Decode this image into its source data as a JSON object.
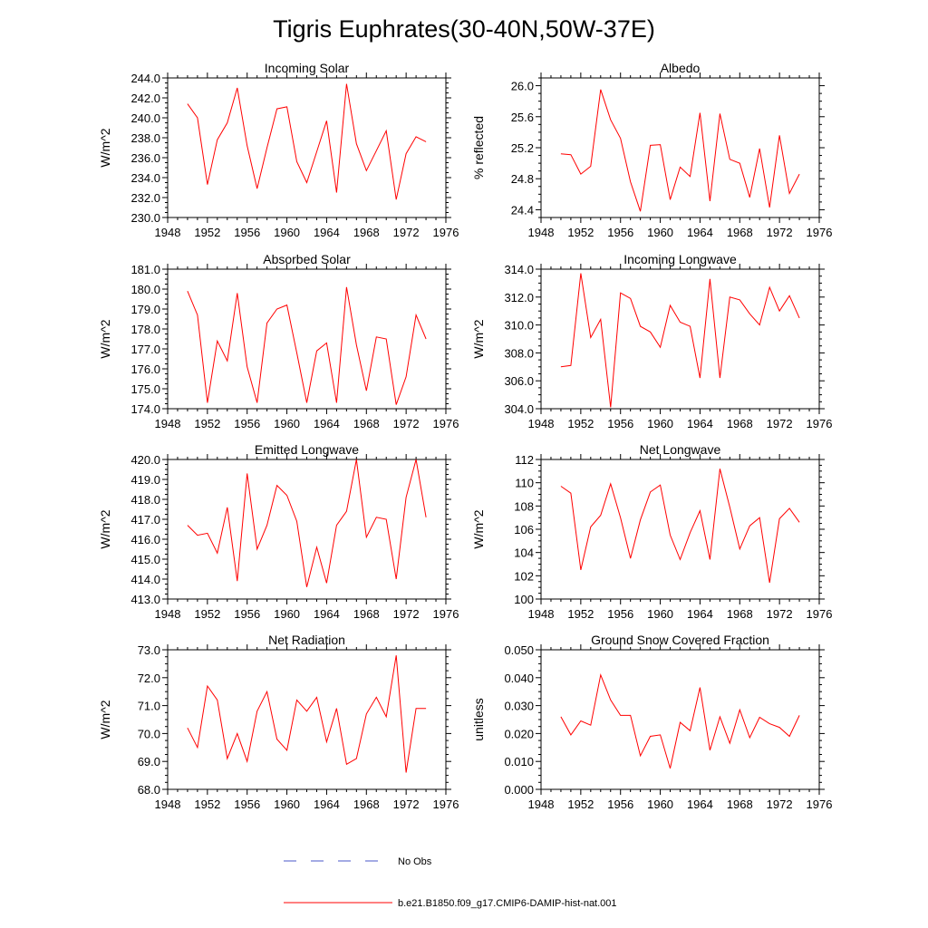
{
  "figure": {
    "title": "Tigris Euphrates(30-40N,50W-37E)",
    "colors": {
      "model": "#ff0000",
      "obs": "#4a57c8",
      "axis": "#000000"
    }
  },
  "legend": {
    "obs_label": "No Obs",
    "model_label": "b.e21.B1850.f09_g17.CMIP6-DAMIP-hist-nat.001"
  },
  "chart_data": [
    {
      "type": "line",
      "title": "Incoming Solar",
      "xlabel": "",
      "ylabel": "W/m^2",
      "xlim": [
        1948,
        1976
      ],
      "ylim": [
        230,
        244
      ],
      "y_decimals": 1,
      "xticks": [
        1948,
        1952,
        1956,
        1960,
        1964,
        1968,
        1972,
        1976
      ],
      "yticks": [
        230,
        232,
        234,
        236,
        238,
        240,
        242,
        244
      ],
      "x": [
        1950,
        1951,
        1952,
        1953,
        1954,
        1955,
        1956,
        1957,
        1958,
        1959,
        1960,
        1961,
        1962,
        1963,
        1964,
        1965,
        1966,
        1967,
        1968,
        1969,
        1970,
        1971,
        1972,
        1973,
        1974
      ],
      "series": [
        {
          "name": "b.e21.B1850.f09_g17.CMIP6-DAMIP-hist-nat.001",
          "values": [
            241.4,
            240.0,
            233.3,
            237.8,
            239.5,
            243.0,
            237.2,
            232.9,
            237.0,
            240.9,
            241.1,
            235.6,
            233.5,
            236.6,
            239.7,
            232.5,
            243.4,
            237.4,
            234.7,
            236.7,
            238.7,
            231.8,
            236.4,
            238.1,
            237.6
          ]
        }
      ]
    },
    {
      "type": "line",
      "title": "Albedo",
      "xlabel": "",
      "ylabel": "% reflected",
      "xlim": [
        1948,
        1976
      ],
      "ylim": [
        24.3,
        26.1
      ],
      "y_decimals": 1,
      "xticks": [
        1948,
        1952,
        1956,
        1960,
        1964,
        1968,
        1972,
        1976
      ],
      "yticks": [
        24.4,
        24.8,
        25.2,
        25.6,
        26.0
      ],
      "x": [
        1950,
        1951,
        1952,
        1953,
        1954,
        1955,
        1956,
        1957,
        1958,
        1959,
        1960,
        1961,
        1962,
        1963,
        1964,
        1965,
        1966,
        1967,
        1968,
        1969,
        1970,
        1971,
        1972,
        1973,
        1974
      ],
      "series": [
        {
          "name": "b.e21.B1850.f09_g17.CMIP6-DAMIP-hist-nat.001",
          "values": [
            25.12,
            25.11,
            24.86,
            24.96,
            25.95,
            25.56,
            25.32,
            24.76,
            24.38,
            25.23,
            25.24,
            24.53,
            24.95,
            24.83,
            25.65,
            24.51,
            25.64,
            25.05,
            25.0,
            24.56,
            25.19,
            24.43,
            25.36,
            24.61,
            24.86
          ]
        }
      ]
    },
    {
      "type": "line",
      "title": "Absorbed Solar",
      "xlabel": "",
      "ylabel": "W/m^2",
      "xlim": [
        1948,
        1976
      ],
      "ylim": [
        174,
        181
      ],
      "y_decimals": 1,
      "xticks": [
        1948,
        1952,
        1956,
        1960,
        1964,
        1968,
        1972,
        1976
      ],
      "yticks": [
        174,
        175,
        176,
        177,
        178,
        179,
        180,
        181
      ],
      "x": [
        1950,
        1951,
        1952,
        1953,
        1954,
        1955,
        1956,
        1957,
        1958,
        1959,
        1960,
        1961,
        1962,
        1963,
        1964,
        1965,
        1966,
        1967,
        1968,
        1969,
        1970,
        1971,
        1972,
        1973,
        1974
      ],
      "series": [
        {
          "name": "b.e21.B1850.f09_g17.CMIP6-DAMIP-hist-nat.001",
          "values": [
            179.9,
            178.7,
            174.3,
            177.4,
            176.4,
            179.8,
            176.1,
            174.3,
            178.3,
            179.0,
            179.2,
            176.8,
            174.3,
            176.9,
            177.3,
            174.3,
            180.1,
            177.2,
            174.9,
            177.6,
            177.5,
            174.2,
            175.6,
            178.7,
            177.5
          ]
        }
      ]
    },
    {
      "type": "line",
      "title": "Incoming Longwave",
      "xlabel": "",
      "ylabel": "W/m^2",
      "xlim": [
        1948,
        1976
      ],
      "ylim": [
        304,
        314
      ],
      "y_decimals": 1,
      "xticks": [
        1948,
        1952,
        1956,
        1960,
        1964,
        1968,
        1972,
        1976
      ],
      "yticks": [
        304,
        306,
        308,
        310,
        312,
        314
      ],
      "x": [
        1950,
        1951,
        1952,
        1953,
        1954,
        1955,
        1956,
        1957,
        1958,
        1959,
        1960,
        1961,
        1962,
        1963,
        1964,
        1965,
        1966,
        1967,
        1968,
        1969,
        1970,
        1971,
        1972,
        1973,
        1974
      ],
      "series": [
        {
          "name": "b.e21.B1850.f09_g17.CMIP6-DAMIP-hist-nat.001",
          "values": [
            307.0,
            307.1,
            313.7,
            309.1,
            310.4,
            304.1,
            312.3,
            311.9,
            309.9,
            309.5,
            308.4,
            311.4,
            310.2,
            309.9,
            306.2,
            313.3,
            306.2,
            312.0,
            311.8,
            310.8,
            310.0,
            312.7,
            311.0,
            312.1,
            310.5
          ]
        }
      ]
    },
    {
      "type": "line",
      "title": "Emitted Longwave",
      "xlabel": "",
      "ylabel": "W/m^2",
      "xlim": [
        1948,
        1976
      ],
      "ylim": [
        413,
        420
      ],
      "y_decimals": 1,
      "xticks": [
        1948,
        1952,
        1956,
        1960,
        1964,
        1968,
        1972,
        1976
      ],
      "yticks": [
        413,
        414,
        415,
        416,
        417,
        418,
        419,
        420
      ],
      "x": [
        1950,
        1951,
        1952,
        1953,
        1954,
        1955,
        1956,
        1957,
        1958,
        1959,
        1960,
        1961,
        1962,
        1963,
        1964,
        1965,
        1966,
        1967,
        1968,
        1969,
        1970,
        1971,
        1972,
        1973,
        1974
      ],
      "series": [
        {
          "name": "b.e21.B1850.f09_g17.CMIP6-DAMIP-hist-nat.001",
          "values": [
            416.7,
            416.2,
            416.3,
            415.3,
            417.6,
            413.9,
            419.3,
            415.5,
            416.7,
            418.7,
            418.2,
            416.9,
            413.6,
            415.6,
            413.8,
            416.7,
            417.4,
            420.0,
            416.1,
            417.1,
            417.0,
            414.0,
            418.1,
            420.0,
            417.1
          ]
        }
      ]
    },
    {
      "type": "line",
      "title": "Net Longwave",
      "xlabel": "",
      "ylabel": "W/m^2",
      "xlim": [
        1948,
        1976
      ],
      "ylim": [
        100,
        112
      ],
      "y_decimals": 0,
      "xticks": [
        1948,
        1952,
        1956,
        1960,
        1964,
        1968,
        1972,
        1976
      ],
      "yticks": [
        100,
        102,
        104,
        106,
        108,
        110,
        112
      ],
      "x": [
        1950,
        1951,
        1952,
        1953,
        1954,
        1955,
        1956,
        1957,
        1958,
        1959,
        1960,
        1961,
        1962,
        1963,
        1964,
        1965,
        1966,
        1967,
        1968,
        1969,
        1970,
        1971,
        1972,
        1973,
        1974
      ],
      "series": [
        {
          "name": "b.e21.B1850.f09_g17.CMIP6-DAMIP-hist-nat.001",
          "values": [
            109.7,
            109.1,
            102.5,
            106.2,
            107.2,
            109.9,
            107.0,
            103.5,
            106.8,
            109.2,
            109.8,
            105.5,
            103.4,
            105.7,
            107.6,
            103.4,
            111.2,
            107.9,
            104.3,
            106.3,
            107.0,
            101.4,
            106.9,
            107.8,
            106.6
          ]
        }
      ]
    },
    {
      "type": "line",
      "title": "Net Radiation",
      "xlabel": "",
      "ylabel": "W/m^2",
      "xlim": [
        1948,
        1976
      ],
      "ylim": [
        68,
        73
      ],
      "y_decimals": 1,
      "xticks": [
        1948,
        1952,
        1956,
        1960,
        1964,
        1968,
        1972,
        1976
      ],
      "yticks": [
        68,
        69,
        70,
        71,
        72,
        73
      ],
      "x": [
        1950,
        1951,
        1952,
        1953,
        1954,
        1955,
        1956,
        1957,
        1958,
        1959,
        1960,
        1961,
        1962,
        1963,
        1964,
        1965,
        1966,
        1967,
        1968,
        1969,
        1970,
        1971,
        1972,
        1973,
        1974
      ],
      "series": [
        {
          "name": "b.e21.B1850.f09_g17.CMIP6-DAMIP-hist-nat.001",
          "values": [
            70.2,
            69.5,
            71.7,
            71.2,
            69.1,
            70.0,
            69.0,
            70.8,
            71.5,
            69.8,
            69.4,
            71.2,
            70.8,
            71.3,
            69.7,
            70.9,
            68.9,
            69.1,
            70.7,
            71.3,
            70.6,
            72.8,
            68.6,
            70.9,
            70.9
          ]
        }
      ]
    },
    {
      "type": "line",
      "title": "Ground Snow Covered Fraction",
      "xlabel": "",
      "ylabel": "unitless",
      "xlim": [
        1948,
        1976
      ],
      "ylim": [
        0,
        0.05
      ],
      "y_decimals": 3,
      "xticks": [
        1948,
        1952,
        1956,
        1960,
        1964,
        1968,
        1972,
        1976
      ],
      "yticks": [
        0,
        0.01,
        0.02,
        0.03,
        0.04,
        0.05
      ],
      "x": [
        1950,
        1951,
        1952,
        1953,
        1954,
        1955,
        1956,
        1957,
        1958,
        1959,
        1960,
        1961,
        1962,
        1963,
        1964,
        1965,
        1966,
        1967,
        1968,
        1969,
        1970,
        1971,
        1972,
        1973,
        1974
      ],
      "series": [
        {
          "name": "b.e21.B1850.f09_g17.CMIP6-DAMIP-hist-nat.001",
          "values": [
            0.026,
            0.0195,
            0.0245,
            0.023,
            0.041,
            0.032,
            0.0265,
            0.0265,
            0.012,
            0.019,
            0.0195,
            0.0075,
            0.024,
            0.021,
            0.0365,
            0.014,
            0.026,
            0.0165,
            0.0285,
            0.0185,
            0.0258,
            0.0235,
            0.0222,
            0.019,
            0.0265
          ]
        }
      ]
    }
  ]
}
